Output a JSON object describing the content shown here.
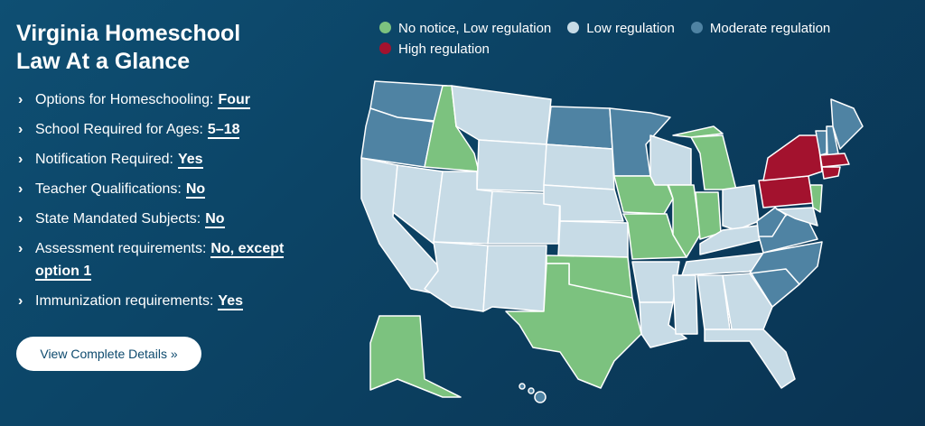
{
  "header": {
    "title": "Virginia Homeschool Law At a Glance"
  },
  "facts": [
    {
      "label": "Options for Homeschooling:",
      "value": "Four"
    },
    {
      "label": "School Required for Ages:",
      "value": "5–18"
    },
    {
      "label": "Notification Required:",
      "value": "Yes"
    },
    {
      "label": "Teacher Qualifications:",
      "value": "No"
    },
    {
      "label": "State Mandated Subjects:",
      "value": "No"
    },
    {
      "label": "Assessment requirements:",
      "value": "No, except option 1"
    },
    {
      "label": "Immunization requirements:",
      "value": "Yes"
    }
  ],
  "button": "View Complete Details »",
  "legend": [
    {
      "label": "No notice, Low regulation",
      "color": "#7cc27f"
    },
    {
      "label": "Low regulation",
      "color": "#c7dbe6"
    },
    {
      "label": "Moderate regulation",
      "color": "#4f83a3"
    },
    {
      "label": "High regulation",
      "color": "#a3122e"
    }
  ]
}
